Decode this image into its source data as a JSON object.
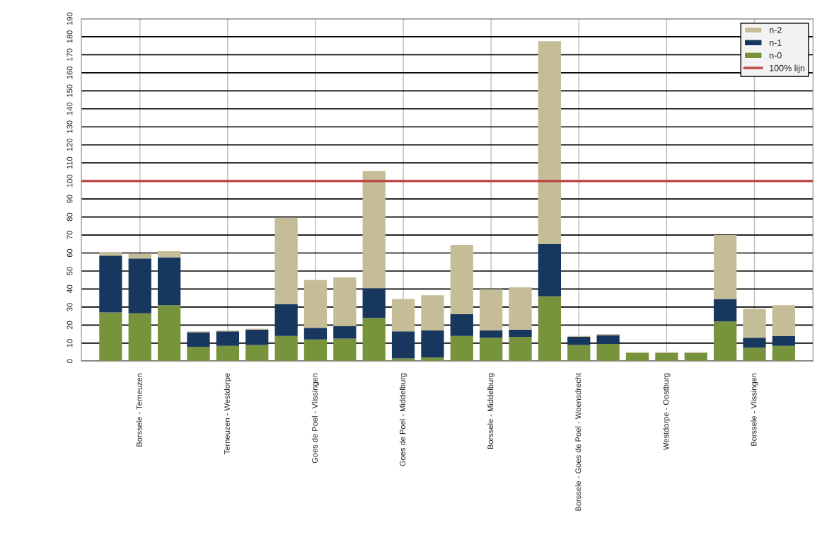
{
  "chart_data": {
    "type": "bar",
    "stacked": true,
    "categories": [
      null,
      "Borssele - Terneuzen",
      null,
      null,
      "Terneuzen - Westdorpe",
      null,
      null,
      "Goes de Poel - Vlissingen",
      null,
      null,
      "Goes de Poel - Middelburg",
      null,
      null,
      "Borssele - Middelburg",
      null,
      null,
      "Borssele - Goes de Poel - Woensdrecht",
      null,
      null,
      "Westdorpe - Oostburg",
      null,
      null,
      "Borssele - Vlissingen",
      null
    ],
    "series": [
      {
        "name": "n-0",
        "color": "#77933c",
        "values": [
          27,
          26.5,
          31,
          8,
          8.5,
          9,
          14,
          12,
          12.5,
          24,
          1.5,
          2,
          14,
          13,
          13.5,
          36,
          9,
          9.5,
          4.5,
          4.5,
          4.5,
          22,
          7.5,
          8.5
        ]
      },
      {
        "name": "n-1",
        "color": "#17375e",
        "values": [
          31.5,
          30.5,
          26.5,
          8,
          8,
          8.5,
          17.5,
          6.5,
          7,
          16.5,
          15,
          15,
          12,
          4,
          4,
          29,
          4.5,
          5,
          null,
          null,
          null,
          12.5,
          5.5,
          5.5
        ]
      },
      {
        "name": "n-2",
        "color": "#c4bd97",
        "values": [
          2,
          2.5,
          3.5,
          0.5,
          0.5,
          0.5,
          48,
          26.5,
          27,
          65,
          18,
          19.5,
          38.5,
          23,
          23.5,
          112.5,
          0.5,
          0.5,
          0.5,
          0.5,
          0.5,
          35.5,
          16,
          17
        ]
      }
    ],
    "ref_lines": [
      {
        "axis": "y",
        "value": 100,
        "label": "100% lijn",
        "color": "#be4b48"
      }
    ],
    "ylim": [
      0,
      190
    ],
    "yticks": [
      0,
      10,
      20,
      30,
      40,
      50,
      60,
      70,
      80,
      90,
      100,
      110,
      120,
      130,
      140,
      150,
      160,
      170,
      180,
      190
    ],
    "grid": true,
    "legend": "top right"
  }
}
